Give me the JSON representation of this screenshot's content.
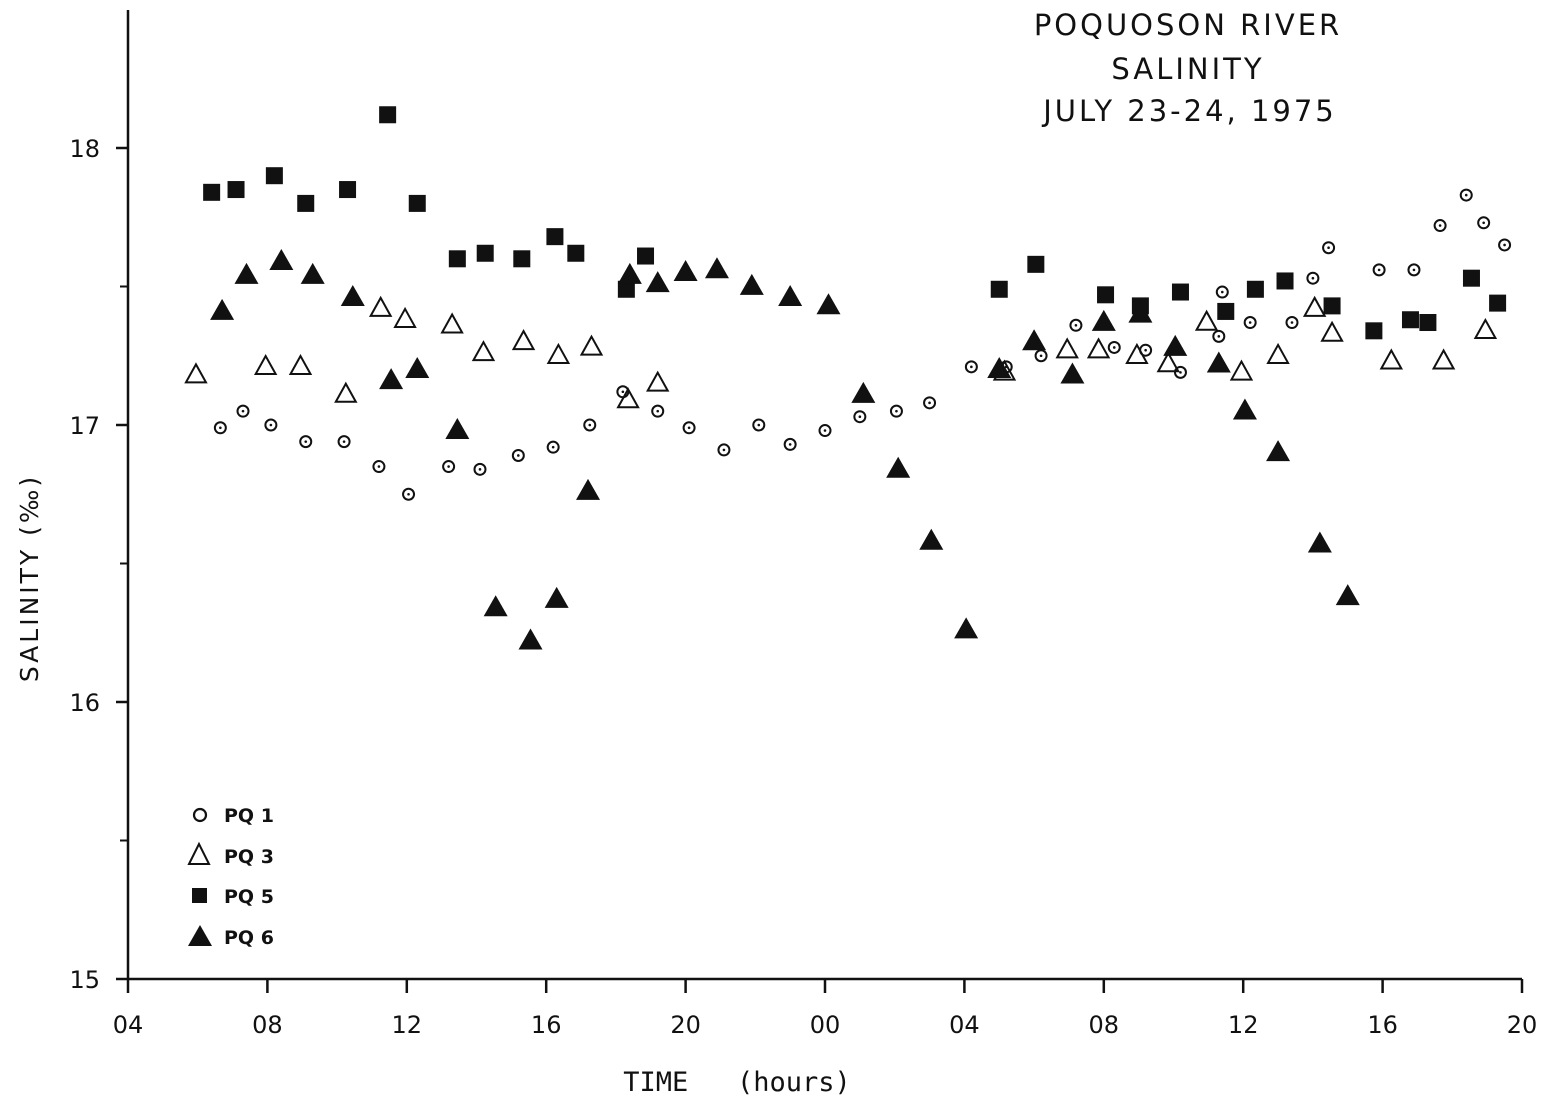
{
  "chart_data": {
    "type": "scatter",
    "title_lines": [
      "POQUOSON  RIVER",
      "SALINITY",
      "JULY  23-24,  1975"
    ],
    "xlabel": "TIME   (hours)",
    "ylabel": "SALINITY (‰)",
    "x_unit": "hours elapsed since 04:00 July 23",
    "xlim": [
      0,
      40
    ],
    "ylim": [
      15,
      18.5
    ],
    "x_ticks": [
      0,
      4,
      8,
      12,
      16,
      20,
      24,
      28,
      32,
      36,
      40
    ],
    "x_tick_labels": [
      "04",
      "08",
      "12",
      "16",
      "20",
      "00",
      "04",
      "08",
      "12",
      "16",
      "20"
    ],
    "y_ticks": [
      15,
      16,
      17,
      18
    ],
    "y_tick_labels": [
      "15",
      "16",
      "17",
      "18"
    ],
    "grid": false,
    "legend_position": "bottom-left",
    "series": [
      {
        "name": "PQ 1",
        "marker": "dot-circle",
        "x": [
          2.65,
          3.3,
          4.1,
          5.1,
          6.2,
          7.2,
          8.05,
          9.2,
          10.1,
          11.2,
          12.2,
          13.25,
          14.2,
          15.2,
          16.1,
          17.1,
          18.1,
          19.0,
          20.0,
          21.0,
          22.05,
          23.0,
          24.2,
          25.2,
          26.2,
          27.2,
          28.3,
          29.2,
          30.2,
          31.3,
          31.4,
          32.2,
          33.4,
          34.0,
          34.45,
          35.9,
          36.9,
          37.65,
          38.4,
          38.9,
          39.5
        ],
        "y": [
          16.99,
          17.05,
          17.0,
          16.94,
          16.94,
          16.85,
          16.75,
          16.85,
          16.84,
          16.89,
          16.92,
          17.0,
          17.12,
          17.05,
          16.99,
          16.91,
          17.0,
          16.93,
          16.98,
          17.03,
          17.05,
          17.08,
          17.21,
          17.21,
          17.25,
          17.36,
          17.28,
          17.27,
          17.19,
          17.32,
          17.48,
          17.37,
          17.37,
          17.53,
          17.64,
          17.56,
          17.56,
          17.72,
          17.83,
          17.73,
          17.65
        ]
      },
      {
        "name": "PQ 3",
        "marker": "open-triangle",
        "x": [
          1.95,
          3.95,
          4.95,
          6.25,
          7.25,
          7.95,
          9.3,
          10.2,
          11.35,
          12.35,
          13.3,
          14.35,
          15.2,
          25.15,
          26.95,
          27.85,
          28.95,
          29.85,
          30.95,
          31.95,
          33.0,
          34.05,
          34.55,
          36.25,
          37.75,
          38.95
        ],
        "y": [
          17.18,
          17.21,
          17.21,
          17.11,
          17.42,
          17.38,
          17.36,
          17.26,
          17.3,
          17.25,
          17.28,
          17.09,
          17.15,
          17.19,
          17.27,
          17.27,
          17.25,
          17.22,
          17.37,
          17.19,
          17.25,
          17.42,
          17.33,
          17.23,
          17.23,
          17.34
        ]
      },
      {
        "name": "PQ 5",
        "marker": "filled-square",
        "x": [
          2.4,
          3.1,
          4.2,
          5.1,
          6.3,
          7.45,
          8.3,
          9.45,
          10.25,
          11.3,
          12.25,
          12.85,
          14.3,
          14.85,
          25.0,
          26.05,
          28.05,
          29.05,
          30.2,
          31.5,
          32.35,
          33.2,
          34.55,
          35.75,
          36.8,
          37.3,
          38.55,
          39.3
        ],
        "y": [
          17.84,
          17.85,
          17.9,
          17.8,
          17.85,
          18.12,
          17.8,
          17.6,
          17.62,
          17.6,
          17.68,
          17.62,
          17.49,
          17.61,
          17.49,
          17.58,
          17.47,
          17.43,
          17.48,
          17.41,
          17.49,
          17.52,
          17.43,
          17.34,
          17.38,
          17.37,
          17.53,
          17.44
        ]
      },
      {
        "name": "PQ 6",
        "marker": "filled-triangle",
        "x": [
          2.7,
          3.4,
          4.4,
          5.3,
          6.45,
          7.55,
          8.3,
          9.45,
          10.55,
          11.55,
          12.3,
          13.2,
          14.4,
          15.2,
          16.0,
          16.9,
          17.9,
          19.0,
          20.1,
          21.1,
          22.1,
          23.05,
          24.05,
          25.0,
          26.0,
          27.1,
          28.0,
          29.05,
          30.05,
          31.3,
          32.05,
          33.0,
          34.2,
          35.0
        ],
        "y": [
          17.41,
          17.54,
          17.59,
          17.54,
          17.46,
          17.16,
          17.2,
          16.98,
          16.34,
          16.22,
          16.37,
          16.76,
          17.54,
          17.51,
          17.55,
          17.56,
          17.5,
          17.46,
          17.43,
          17.11,
          16.84,
          16.58,
          16.26,
          17.2,
          17.3,
          17.18,
          17.37,
          17.4,
          17.28,
          17.22,
          17.05,
          16.9,
          16.57,
          16.38
        ]
      }
    ]
  }
}
